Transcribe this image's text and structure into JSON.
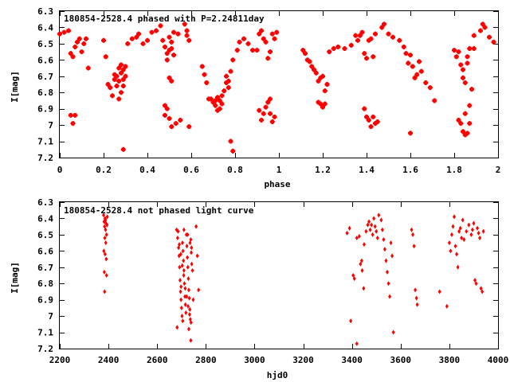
{
  "chart_data": [
    {
      "type": "scatter",
      "title": "180854-2528.4 phased with P=2.24811day",
      "xlabel": "phase",
      "ylabel": "I[mag]",
      "xlim": [
        0,
        2
      ],
      "ylim": [
        6.3,
        7.2
      ],
      "y_inverted": true,
      "grid": false,
      "xticks": [
        "0",
        "0.2",
        "0.4",
        "0.6",
        "0.8",
        "1",
        "1.2",
        "1.4",
        "1.6",
        "1.8",
        "2"
      ],
      "yticks": [
        "6.3",
        "6.4",
        "6.5",
        "6.6",
        "6.7",
        "6.8",
        "6.9",
        "7",
        "7.1",
        "7.2"
      ],
      "marker_color": "#ff0000",
      "marker": "star",
      "points": [
        [
          0.0,
          6.44
        ],
        [
          0.02,
          6.43
        ],
        [
          0.04,
          6.42
        ],
        [
          0.05,
          6.56
        ],
        [
          0.06,
          6.58
        ],
        [
          0.07,
          6.52
        ],
        [
          0.08,
          6.49
        ],
        [
          0.09,
          6.47
        ],
        [
          0.11,
          6.5
        ],
        [
          0.12,
          6.47
        ],
        [
          0.05,
          6.94
        ],
        [
          0.06,
          6.99
        ],
        [
          0.07,
          6.94
        ],
        [
          0.1,
          6.55
        ],
        [
          0.13,
          6.65
        ],
        [
          0.2,
          6.48
        ],
        [
          0.21,
          6.58
        ],
        [
          0.22,
          6.75
        ],
        [
          0.23,
          6.77
        ],
        [
          0.24,
          6.82
        ],
        [
          0.25,
          6.69
        ],
        [
          0.25,
          6.72
        ],
        [
          0.26,
          6.7
        ],
        [
          0.27,
          6.73
        ],
        [
          0.27,
          6.65
        ],
        [
          0.28,
          6.68
        ],
        [
          0.28,
          6.63
        ],
        [
          0.29,
          6.72
        ],
        [
          0.29,
          6.66
        ],
        [
          0.3,
          6.7
        ],
        [
          0.3,
          6.64
        ],
        [
          0.28,
          6.8
        ],
        [
          0.27,
          6.84
        ],
        [
          0.29,
          6.76
        ],
        [
          0.26,
          6.76
        ],
        [
          0.29,
          7.15
        ],
        [
          0.31,
          6.5
        ],
        [
          0.33,
          6.47
        ],
        [
          0.35,
          6.46
        ],
        [
          0.36,
          6.44
        ],
        [
          0.38,
          6.5
        ],
        [
          0.4,
          6.48
        ],
        [
          0.42,
          6.43
        ],
        [
          0.44,
          6.42
        ],
        [
          0.46,
          6.39
        ],
        [
          0.47,
          6.48
        ],
        [
          0.48,
          6.52
        ],
        [
          0.49,
          6.56
        ],
        [
          0.49,
          6.6
        ],
        [
          0.5,
          6.54
        ],
        [
          0.51,
          6.53
        ],
        [
          0.52,
          6.57
        ],
        [
          0.51,
          6.49
        ],
        [
          0.5,
          6.46
        ],
        [
          0.52,
          6.43
        ],
        [
          0.5,
          6.71
        ],
        [
          0.51,
          6.73
        ],
        [
          0.48,
          6.88
        ],
        [
          0.49,
          6.9
        ],
        [
          0.48,
          6.94
        ],
        [
          0.5,
          6.96
        ],
        [
          0.51,
          7.01
        ],
        [
          0.53,
          6.99
        ],
        [
          0.55,
          6.97
        ],
        [
          0.54,
          6.44
        ],
        [
          0.57,
          6.38
        ],
        [
          0.58,
          6.45
        ],
        [
          0.58,
          6.42
        ],
        [
          0.59,
          6.48
        ],
        [
          0.59,
          7.01
        ],
        [
          0.65,
          6.64
        ],
        [
          0.66,
          6.69
        ],
        [
          0.67,
          6.74
        ],
        [
          0.68,
          6.84
        ],
        [
          0.69,
          6.84
        ],
        [
          0.7,
          6.86
        ],
        [
          0.71,
          6.88
        ],
        [
          0.71,
          6.85
        ],
        [
          0.72,
          6.91
        ],
        [
          0.72,
          6.83
        ],
        [
          0.73,
          6.9
        ],
        [
          0.73,
          6.85
        ],
        [
          0.74,
          6.87
        ],
        [
          0.74,
          6.82
        ],
        [
          0.75,
          6.79
        ],
        [
          0.76,
          6.74
        ],
        [
          0.76,
          6.7
        ],
        [
          0.77,
          6.73
        ],
        [
          0.77,
          6.77
        ],
        [
          0.78,
          6.67
        ],
        [
          0.79,
          6.6
        ],
        [
          0.78,
          7.1
        ],
        [
          0.79,
          7.16
        ],
        [
          0.81,
          6.54
        ],
        [
          0.82,
          6.49
        ],
        [
          0.84,
          6.47
        ],
        [
          0.86,
          6.5
        ],
        [
          0.88,
          6.54
        ],
        [
          0.9,
          6.54
        ],
        [
          0.91,
          6.44
        ],
        [
          0.92,
          6.42
        ],
        [
          0.93,
          6.47
        ],
        [
          0.94,
          6.49
        ],
        [
          0.95,
          6.59
        ],
        [
          0.96,
          6.55
        ],
        [
          0.97,
          6.44
        ],
        [
          0.98,
          6.47
        ],
        [
          0.99,
          6.43
        ],
        [
          0.91,
          6.91
        ],
        [
          0.92,
          6.97
        ],
        [
          0.93,
          6.93
        ],
        [
          0.94,
          6.89
        ],
        [
          0.95,
          6.86
        ],
        [
          0.96,
          6.93
        ],
        [
          0.97,
          6.98
        ],
        [
          0.98,
          6.95
        ],
        [
          0.96,
          6.84
        ],
        [
          1.11,
          6.54
        ],
        [
          1.12,
          6.56
        ],
        [
          1.13,
          6.6
        ],
        [
          1.14,
          6.61
        ],
        [
          1.15,
          6.64
        ],
        [
          1.16,
          6.66
        ],
        [
          1.17,
          6.68
        ],
        [
          1.18,
          6.73
        ],
        [
          1.19,
          6.71
        ],
        [
          1.2,
          6.7
        ],
        [
          1.21,
          6.79
        ],
        [
          1.22,
          6.75
        ],
        [
          1.18,
          6.86
        ],
        [
          1.19,
          6.87
        ],
        [
          1.2,
          6.89
        ],
        [
          1.21,
          6.87
        ],
        [
          1.23,
          6.55
        ],
        [
          1.25,
          6.53
        ],
        [
          1.27,
          6.52
        ],
        [
          1.3,
          6.53
        ],
        [
          1.33,
          6.51
        ],
        [
          1.35,
          6.45
        ],
        [
          1.36,
          6.48
        ],
        [
          1.37,
          6.45
        ],
        [
          1.38,
          6.43
        ],
        [
          1.39,
          6.56
        ],
        [
          1.4,
          6.59
        ],
        [
          1.41,
          6.48
        ],
        [
          1.42,
          6.47
        ],
        [
          1.43,
          6.58
        ],
        [
          1.39,
          6.9
        ],
        [
          1.4,
          6.95
        ],
        [
          1.41,
          6.97
        ],
        [
          1.42,
          7.01
        ],
        [
          1.43,
          6.95
        ],
        [
          1.44,
          6.99
        ],
        [
          1.45,
          6.98
        ],
        [
          1.44,
          6.44
        ],
        [
          1.47,
          6.4
        ],
        [
          1.48,
          6.38
        ],
        [
          1.5,
          6.44
        ],
        [
          1.52,
          6.46
        ],
        [
          1.55,
          6.48
        ],
        [
          1.57,
          6.52
        ],
        [
          1.58,
          6.56
        ],
        [
          1.59,
          6.62
        ],
        [
          1.6,
          6.57
        ],
        [
          1.61,
          6.64
        ],
        [
          1.62,
          6.71
        ],
        [
          1.63,
          6.69
        ],
        [
          1.64,
          6.61
        ],
        [
          1.65,
          6.67
        ],
        [
          1.6,
          7.05
        ],
        [
          1.67,
          6.74
        ],
        [
          1.69,
          6.77
        ],
        [
          1.71,
          6.85
        ],
        [
          1.8,
          6.54
        ],
        [
          1.81,
          6.58
        ],
        [
          1.82,
          6.55
        ],
        [
          1.83,
          6.63
        ],
        [
          1.84,
          6.66
        ],
        [
          1.84,
          6.71
        ],
        [
          1.85,
          6.74
        ],
        [
          1.86,
          6.58
        ],
        [
          1.87,
          6.53
        ],
        [
          1.86,
          6.62
        ],
        [
          1.82,
          6.97
        ],
        [
          1.83,
          6.99
        ],
        [
          1.84,
          7.04
        ],
        [
          1.85,
          7.06
        ],
        [
          1.85,
          6.93
        ],
        [
          1.86,
          7.05
        ],
        [
          1.87,
          6.99
        ],
        [
          1.87,
          6.88
        ],
        [
          1.88,
          6.78
        ],
        [
          1.89,
          6.45
        ],
        [
          1.92,
          6.42
        ],
        [
          1.93,
          6.38
        ],
        [
          1.94,
          6.4
        ],
        [
          1.96,
          6.46
        ],
        [
          1.98,
          6.49
        ],
        [
          1.89,
          6.53
        ]
      ]
    },
    {
      "type": "scatter",
      "title": "180854-2528.4 not phased light curve",
      "xlabel": "hjd0",
      "ylabel": "I[mag]",
      "xlim": [
        2200,
        4000
      ],
      "ylim": [
        6.3,
        7.2
      ],
      "y_inverted": true,
      "grid": false,
      "xticks": [
        "2200",
        "2400",
        "2600",
        "2800",
        "3000",
        "3200",
        "3400",
        "3600",
        "3800",
        "4000"
      ],
      "yticks": [
        "6.3",
        "6.4",
        "6.5",
        "6.6",
        "6.7",
        "6.8",
        "6.9",
        "7",
        "7.1",
        "7.2"
      ],
      "marker_color": "#ff0000",
      "marker": "diamond",
      "points": [
        [
          2380,
          6.38
        ],
        [
          2382,
          6.42
        ],
        [
          2384,
          6.45
        ],
        [
          2386,
          6.4
        ],
        [
          2388,
          6.47
        ],
        [
          2390,
          6.43
        ],
        [
          2392,
          6.5
        ],
        [
          2394,
          6.44
        ],
        [
          2385,
          6.52
        ],
        [
          2389,
          6.55
        ],
        [
          2381,
          6.6
        ],
        [
          2386,
          6.62
        ],
        [
          2391,
          6.65
        ],
        [
          2383,
          6.73
        ],
        [
          2392,
          6.75
        ],
        [
          2384,
          6.85
        ],
        [
          2388,
          6.41
        ],
        [
          2395,
          6.39
        ],
        [
          2680,
          6.47
        ],
        [
          2684,
          6.52
        ],
        [
          2688,
          6.58
        ],
        [
          2690,
          6.63
        ],
        [
          2692,
          6.7
        ],
        [
          2694,
          6.78
        ],
        [
          2696,
          6.85
        ],
        [
          2698,
          6.9
        ],
        [
          2700,
          6.95
        ],
        [
          2702,
          7.0
        ],
        [
          2704,
          6.55
        ],
        [
          2706,
          6.6
        ],
        [
          2708,
          6.66
        ],
        [
          2710,
          6.72
        ],
        [
          2712,
          6.8
        ],
        [
          2714,
          6.88
        ],
        [
          2716,
          6.93
        ],
        [
          2718,
          6.98
        ],
        [
          2720,
          6.5
        ],
        [
          2722,
          6.57
        ],
        [
          2724,
          6.64
        ],
        [
          2726,
          6.7
        ],
        [
          2728,
          6.77
        ],
        [
          2730,
          6.84
        ],
        [
          2732,
          6.89
        ],
        [
          2734,
          6.96
        ],
        [
          2736,
          7.02
        ],
        [
          2738,
          6.53
        ],
        [
          2740,
          6.61
        ],
        [
          2742,
          6.68
        ],
        [
          2686,
          6.48
        ],
        [
          2691,
          6.56
        ],
        [
          2697,
          6.62
        ],
        [
          2703,
          6.69
        ],
        [
          2709,
          6.75
        ],
        [
          2715,
          6.83
        ],
        [
          2721,
          6.88
        ],
        [
          2727,
          6.94
        ],
        [
          2733,
          6.99
        ],
        [
          2739,
          7.04
        ],
        [
          2745,
          6.72
        ],
        [
          2748,
          6.9
        ],
        [
          2710,
          6.47
        ],
        [
          2725,
          6.5
        ],
        [
          2735,
          6.55
        ],
        [
          2741,
          6.58
        ],
        [
          2705,
          7.03
        ],
        [
          2730,
          7.08
        ],
        [
          2738,
          7.15
        ],
        [
          2698,
          6.82
        ],
        [
          2682,
          7.07
        ],
        [
          2760,
          6.45
        ],
        [
          2765,
          6.63
        ],
        [
          2770,
          6.84
        ],
        [
          3380,
          6.49
        ],
        [
          3390,
          6.46
        ],
        [
          3395,
          7.03
        ],
        [
          3405,
          6.75
        ],
        [
          3410,
          6.77
        ],
        [
          3420,
          6.52
        ],
        [
          3430,
          6.51
        ],
        [
          3435,
          6.68
        ],
        [
          3440,
          6.66
        ],
        [
          3442,
          6.72
        ],
        [
          3448,
          6.83
        ],
        [
          3450,
          6.56
        ],
        [
          3458,
          6.48
        ],
        [
          3465,
          6.44
        ],
        [
          3470,
          6.42
        ],
        [
          3475,
          6.47
        ],
        [
          3480,
          6.44
        ],
        [
          3485,
          6.5
        ],
        [
          3490,
          6.4
        ],
        [
          3495,
          6.45
        ],
        [
          3500,
          6.48
        ],
        [
          3505,
          6.52
        ],
        [
          3510,
          6.38
        ],
        [
          3520,
          6.41
        ],
        [
          3525,
          6.47
        ],
        [
          3530,
          6.53
        ],
        [
          3535,
          6.59
        ],
        [
          3540,
          6.66
        ],
        [
          3545,
          6.73
        ],
        [
          3550,
          6.8
        ],
        [
          3555,
          6.88
        ],
        [
          3560,
          6.55
        ],
        [
          3565,
          6.63
        ],
        [
          3570,
          7.1
        ],
        [
          3420,
          7.17
        ],
        [
          3645,
          6.47
        ],
        [
          3650,
          6.5
        ],
        [
          3655,
          6.57
        ],
        [
          3660,
          6.84
        ],
        [
          3665,
          6.89
        ],
        [
          3668,
          6.93
        ],
        [
          3800,
          6.55
        ],
        [
          3805,
          6.6
        ],
        [
          3810,
          6.5
        ],
        [
          3815,
          6.45
        ],
        [
          3820,
          6.39
        ],
        [
          3825,
          6.57
        ],
        [
          3830,
          6.62
        ],
        [
          3835,
          6.7
        ],
        [
          3840,
          6.48
        ],
        [
          3845,
          6.46
        ],
        [
          3850,
          6.52
        ],
        [
          3855,
          6.41
        ],
        [
          3860,
          6.53
        ],
        [
          3870,
          6.48
        ],
        [
          3880,
          6.44
        ],
        [
          3890,
          6.5
        ],
        [
          3895,
          6.47
        ],
        [
          3900,
          6.43
        ],
        [
          3905,
          6.78
        ],
        [
          3910,
          6.8
        ],
        [
          3915,
          6.46
        ],
        [
          3920,
          6.49
        ],
        [
          3925,
          6.52
        ],
        [
          3930,
          6.83
        ],
        [
          3935,
          6.85
        ],
        [
          3940,
          6.48
        ],
        [
          3760,
          6.85
        ],
        [
          3790,
          6.94
        ]
      ]
    }
  ]
}
